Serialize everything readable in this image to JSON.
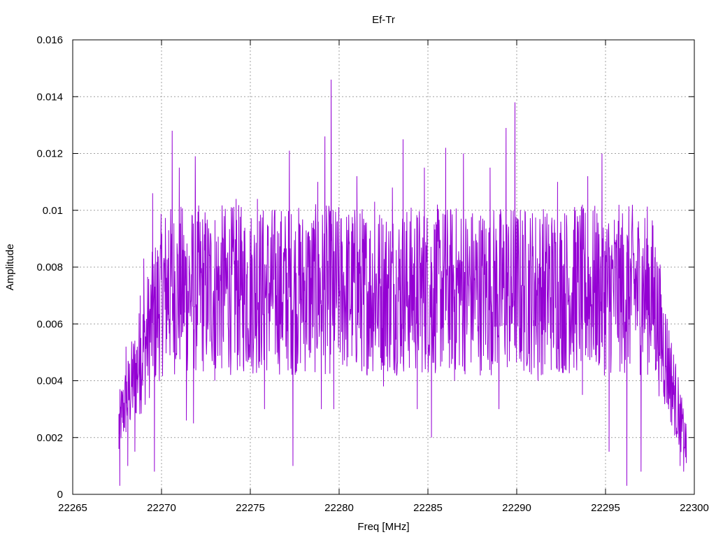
{
  "chart_data": {
    "type": "line",
    "title": "Ef-Tr",
    "xlabel": "Freq [MHz]",
    "ylabel": "Amplitude",
    "xlim": [
      22265,
      22300
    ],
    "ylim": [
      0,
      0.016
    ],
    "x_ticks": [
      "22265",
      "22270",
      "22275",
      "22280",
      "22285",
      "22290",
      "22295",
      "22300"
    ],
    "y_ticks": [
      "0",
      "0.002",
      "0.004",
      "0.006",
      "0.008",
      "0.01",
      "0.012",
      "0.014",
      "0.016"
    ],
    "grid": true,
    "legend": false,
    "series": [
      {
        "color": "#9400d3",
        "description_points": [
          [
            22267.6,
            0.0016
          ],
          [
            22267.65,
            0.0003
          ],
          [
            22267.75,
            0.0027
          ],
          [
            22268.0,
            0.0052
          ],
          [
            22268.1,
            0.001
          ],
          [
            22268.3,
            0.004
          ],
          [
            22268.5,
            0.0015
          ],
          [
            22268.8,
            0.007
          ],
          [
            22269.0,
            0.0083
          ],
          [
            22269.3,
            0.006
          ],
          [
            22269.5,
            0.0106
          ],
          [
            22269.6,
            0.0008
          ],
          [
            22269.9,
            0.0072
          ],
          [
            22270.2,
            0.0065
          ],
          [
            22270.4,
            0.0093
          ],
          [
            22270.6,
            0.0128
          ],
          [
            22270.8,
            0.0048
          ],
          [
            22271.0,
            0.0115
          ],
          [
            22271.3,
            0.0064
          ],
          [
            22271.4,
            0.0026
          ],
          [
            22271.7,
            0.0088
          ],
          [
            22271.8,
            0.0025
          ],
          [
            22271.9,
            0.0119
          ],
          [
            22272.3,
            0.0055
          ],
          [
            22272.6,
            0.006
          ],
          [
            22273.0,
            0.004
          ],
          [
            22273.5,
            0.009
          ],
          [
            22274.0,
            0.0087
          ],
          [
            22274.2,
            0.0104
          ],
          [
            22274.5,
            0.007
          ],
          [
            22275.0,
            0.005
          ],
          [
            22275.4,
            0.0104
          ],
          [
            22275.8,
            0.003
          ],
          [
            22276.2,
            0.0076
          ],
          [
            22276.7,
            0.009
          ],
          [
            22277.0,
            0.0052
          ],
          [
            22277.2,
            0.0121
          ],
          [
            22277.4,
            0.001
          ],
          [
            22277.8,
            0.0083
          ],
          [
            22278.3,
            0.006
          ],
          [
            22278.8,
            0.011
          ],
          [
            22279.0,
            0.003
          ],
          [
            22279.2,
            0.0126
          ],
          [
            22279.4,
            0.0065
          ],
          [
            22279.55,
            0.0146
          ],
          [
            22279.7,
            0.003
          ],
          [
            22280.0,
            0.0082
          ],
          [
            22280.5,
            0.006
          ],
          [
            22281.0,
            0.0112
          ],
          [
            22281.4,
            0.0045
          ],
          [
            22282.0,
            0.0103
          ],
          [
            22282.5,
            0.0038
          ],
          [
            22283.0,
            0.0108
          ],
          [
            22283.6,
            0.0125
          ],
          [
            22284.0,
            0.006
          ],
          [
            22284.4,
            0.003
          ],
          [
            22284.8,
            0.0115
          ],
          [
            22285.2,
            0.002
          ],
          [
            22285.5,
            0.0095
          ],
          [
            22286.0,
            0.0122
          ],
          [
            22286.5,
            0.004
          ],
          [
            22287.0,
            0.012
          ],
          [
            22287.5,
            0.0068
          ],
          [
            22288.0,
            0.0052
          ],
          [
            22288.5,
            0.0115
          ],
          [
            22289.0,
            0.003
          ],
          [
            22289.4,
            0.0129
          ],
          [
            22289.7,
            0.006
          ],
          [
            22289.9,
            0.0138
          ],
          [
            22290.2,
            0.005
          ],
          [
            22290.7,
            0.0072
          ],
          [
            22291.2,
            0.004
          ],
          [
            22291.8,
            0.0095
          ],
          [
            22292.3,
            0.011
          ],
          [
            22292.8,
            0.006
          ],
          [
            22293.3,
            0.01
          ],
          [
            22293.7,
            0.0035
          ],
          [
            22294.0,
            0.0112
          ],
          [
            22294.5,
            0.006
          ],
          [
            22294.8,
            0.012
          ],
          [
            22295.2,
            0.0015
          ],
          [
            22295.5,
            0.009
          ],
          [
            22296.0,
            0.0055
          ],
          [
            22296.2,
            0.0003
          ],
          [
            22296.6,
            0.0085
          ],
          [
            22297.0,
            0.0008
          ],
          [
            22297.4,
            0.007
          ],
          [
            22297.8,
            0.0087
          ],
          [
            22298.0,
            0.005
          ],
          [
            22298.4,
            0.0045
          ],
          [
            22298.8,
            0.003
          ],
          [
            22299.0,
            0.002
          ],
          [
            22299.2,
            0.001
          ],
          [
            22299.4,
            0.0008
          ],
          [
            22299.55,
            0.0011
          ]
        ]
      }
    ]
  }
}
